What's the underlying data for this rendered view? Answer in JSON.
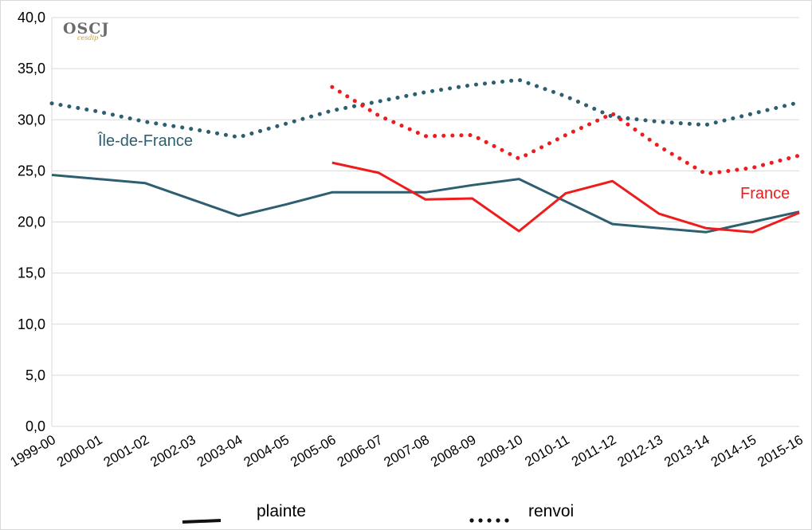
{
  "logo": {
    "text": "OSCJ",
    "subtext": "cesdip"
  },
  "chart_data": {
    "type": "line",
    "ylim": [
      0,
      40
    ],
    "yticks": [
      "0,0",
      "5,0",
      "10,0",
      "15,0",
      "20,0",
      "25,0",
      "30,0",
      "35,0",
      "40,0"
    ],
    "ytick_values": [
      0,
      5,
      10,
      15,
      20,
      25,
      30,
      35,
      40
    ],
    "categories": [
      "1999-00",
      "2000-01",
      "2001-02",
      "2002-03",
      "2003-04",
      "2004-05",
      "2005-06",
      "2006-07",
      "2007-08",
      "2008-09",
      "2009-10",
      "2010-11",
      "2011-12",
      "2012-13",
      "2013-14",
      "2014-15",
      "2015-16"
    ],
    "grid": true,
    "series": [
      {
        "key": "idf_plainte",
        "group": "Île-de-France",
        "kind": "plainte",
        "color": "#2e5f70",
        "style": "solid",
        "values": [
          24.6,
          24.2,
          23.8,
          22.2,
          20.6,
          21.7,
          22.9,
          22.9,
          22.9,
          23.6,
          24.2,
          22.0,
          19.8,
          19.4,
          19.0,
          20.0,
          21.0
        ]
      },
      {
        "key": "idf_renvoi",
        "group": "Île-de-France",
        "kind": "renvoi",
        "color": "#2e5f70",
        "style": "dotted",
        "values": [
          31.6,
          30.8,
          29.8,
          29.1,
          28.3,
          29.6,
          30.9,
          31.8,
          32.7,
          33.4,
          33.9,
          32.3,
          30.3,
          29.8,
          29.5,
          30.6,
          31.7
        ]
      },
      {
        "key": "fr_plainte",
        "group": "France",
        "kind": "plainte",
        "color": "#ee1c1c",
        "style": "solid",
        "values": [
          null,
          null,
          null,
          null,
          null,
          null,
          25.8,
          24.8,
          22.2,
          22.3,
          19.1,
          22.8,
          24.0,
          20.8,
          19.4,
          19.0,
          20.9
        ]
      },
      {
        "key": "fr_renvoi",
        "group": "France",
        "kind": "renvoi",
        "color": "#ee1c1c",
        "style": "dotted",
        "values": [
          null,
          null,
          null,
          null,
          null,
          null,
          33.2,
          30.4,
          28.4,
          28.5,
          26.2,
          28.5,
          30.6,
          27.4,
          24.7,
          25.3,
          26.5
        ]
      }
    ],
    "annotations": [
      {
        "text": "Île-de-France",
        "color": "#2e5f70"
      },
      {
        "text": "France",
        "color": "#ee1c1c"
      }
    ],
    "legend": [
      {
        "label": "plainte",
        "style": "solid"
      },
      {
        "label": "renvoi",
        "style": "dotted"
      }
    ],
    "legend_position": "bottom"
  }
}
